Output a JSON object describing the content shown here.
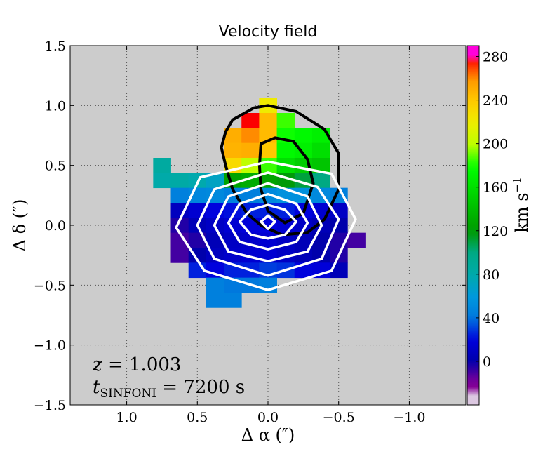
{
  "chart_data": {
    "type": "heatmap",
    "title": "Velocity field",
    "xlabel": "Δ α  (″)",
    "ylabel": "Δ δ  (″)",
    "xlim": [
      1.4,
      -1.4
    ],
    "ylim": [
      -1.5,
      1.5
    ],
    "xticks": [
      1.0,
      0.5,
      0.0,
      -0.5,
      -1.0
    ],
    "xtick_labels": [
      "1.0",
      "0.5",
      "0.0",
      "−0.5",
      "−1.0"
    ],
    "yticks": [
      1.5,
      1.0,
      0.5,
      0.0,
      -0.5,
      -1.0,
      -1.5
    ],
    "ytick_labels": [
      "1.5",
      "1.0",
      "0.5",
      "0.0",
      "−0.5",
      "−1.0",
      "−1.5"
    ],
    "grid": true,
    "background": "#cccccc",
    "pixel_size_arcsec": 0.125,
    "colorbar": {
      "label": "km s",
      "label_exp": "−1",
      "vmin": -40,
      "vmax": 290,
      "ticks": [
        280,
        240,
        200,
        160,
        120,
        80,
        40,
        0
      ],
      "tick_labels": [
        "280",
        "240",
        "200",
        "160",
        "120",
        "80",
        "40",
        "0"
      ],
      "colormap": "nipy_spectral"
    },
    "rows": [
      {
        "dec": 1.0,
        "cells": [
          [
            0.0,
            220
          ]
        ]
      },
      {
        "dec": 0.875,
        "cells": [
          [
            0.125,
            280
          ],
          [
            0.0,
            245
          ],
          [
            -0.125,
            185
          ]
        ]
      },
      {
        "dec": 0.75,
        "cells": [
          [
            0.25,
            250
          ],
          [
            0.125,
            260
          ],
          [
            0.0,
            245
          ],
          [
            -0.125,
            180
          ],
          [
            -0.25,
            175
          ],
          [
            -0.375,
            170
          ]
        ]
      },
      {
        "dec": 0.625,
        "cells": [
          [
            0.25,
            248
          ],
          [
            0.125,
            250
          ],
          [
            0.0,
            240
          ],
          [
            -0.125,
            175
          ],
          [
            -0.25,
            170
          ],
          [
            -0.375,
            160
          ]
        ]
      },
      {
        "dec": 0.5,
        "cells": [
          [
            0.75,
            85
          ],
          [
            0.25,
            230
          ],
          [
            0.125,
            200
          ],
          [
            0.0,
            185
          ],
          [
            -0.125,
            160
          ],
          [
            -0.25,
            150
          ],
          [
            -0.375,
            145
          ]
        ]
      },
      {
        "dec": 0.375,
        "cells": [
          [
            0.75,
            80
          ],
          [
            0.625,
            82
          ],
          [
            0.5,
            78
          ],
          [
            0.375,
            70
          ],
          [
            0.25,
            125
          ],
          [
            0.125,
            130
          ],
          [
            0.0,
            125
          ],
          [
            -0.125,
            118
          ],
          [
            -0.25,
            110
          ],
          [
            -0.375,
            100
          ]
        ]
      },
      {
        "dec": 0.25,
        "cells": [
          [
            0.625,
            45
          ],
          [
            0.5,
            48
          ],
          [
            0.375,
            50
          ],
          [
            0.25,
            45
          ],
          [
            0.125,
            45
          ],
          [
            0.0,
            50
          ],
          [
            -0.125,
            55
          ],
          [
            -0.25,
            55
          ],
          [
            -0.375,
            50
          ],
          [
            -0.5,
            45
          ]
        ]
      },
      {
        "dec": 0.125,
        "cells": [
          [
            0.625,
            8
          ],
          [
            0.5,
            15
          ],
          [
            0.375,
            20
          ],
          [
            0.25,
            22
          ],
          [
            0.125,
            25
          ],
          [
            0.0,
            25
          ],
          [
            -0.125,
            25
          ],
          [
            -0.25,
            20
          ],
          [
            -0.375,
            15
          ],
          [
            -0.5,
            10
          ]
        ]
      },
      {
        "dec": 0.0,
        "cells": [
          [
            0.625,
            -5
          ],
          [
            0.5,
            5
          ],
          [
            0.375,
            10
          ],
          [
            0.25,
            15
          ],
          [
            0.125,
            18
          ],
          [
            0.0,
            20
          ],
          [
            -0.125,
            15
          ],
          [
            -0.25,
            10
          ],
          [
            -0.375,
            5
          ],
          [
            -0.5,
            0
          ]
        ]
      },
      {
        "dec": -0.125,
        "cells": [
          [
            0.625,
            -10
          ],
          [
            0.5,
            -5
          ],
          [
            0.375,
            5
          ],
          [
            0.25,
            10
          ],
          [
            0.125,
            12
          ],
          [
            0.0,
            15
          ],
          [
            -0.125,
            10
          ],
          [
            -0.25,
            5
          ],
          [
            -0.375,
            0
          ],
          [
            -0.5,
            -5
          ],
          [
            -0.625,
            -10
          ]
        ]
      },
      {
        "dec": -0.25,
        "cells": [
          [
            0.625,
            -10
          ],
          [
            0.5,
            0
          ],
          [
            0.375,
            8
          ],
          [
            0.25,
            12
          ],
          [
            0.125,
            15
          ],
          [
            0.0,
            15
          ],
          [
            -0.125,
            10
          ],
          [
            -0.25,
            5
          ],
          [
            -0.375,
            0
          ],
          [
            -0.5,
            -5
          ]
        ]
      },
      {
        "dec": -0.375,
        "cells": [
          [
            0.5,
            25
          ],
          [
            0.375,
            20
          ],
          [
            0.25,
            25
          ],
          [
            0.125,
            25
          ],
          [
            0.0,
            30
          ],
          [
            -0.125,
            28
          ],
          [
            -0.25,
            20
          ],
          [
            -0.375,
            18
          ],
          [
            -0.5,
            5
          ]
        ]
      },
      {
        "dec": -0.5,
        "cells": [
          [
            0.375,
            45
          ],
          [
            0.25,
            40
          ],
          [
            0.125,
            40
          ],
          [
            0.0,
            45
          ]
        ]
      },
      {
        "dec": -0.625,
        "cells": [
          [
            0.375,
            45
          ],
          [
            0.25,
            45
          ]
        ]
      }
    ],
    "contours_white": [
      [
        [
          0.05,
          0.03
        ],
        [
          0.0,
          0.08
        ],
        [
          -0.05,
          0.03
        ],
        [
          0.0,
          -0.03
        ]
      ],
      [
        [
          0.2,
          0.03
        ],
        [
          0.12,
          0.13
        ],
        [
          0.0,
          0.17
        ],
        [
          -0.12,
          0.13
        ],
        [
          -0.2,
          0.03
        ],
        [
          -0.12,
          -0.08
        ],
        [
          0.0,
          -0.11
        ],
        [
          0.12,
          -0.08
        ]
      ],
      [
        [
          0.28,
          0.02
        ],
        [
          0.2,
          0.18
        ],
        [
          0.0,
          0.26
        ],
        [
          -0.2,
          0.18
        ],
        [
          -0.28,
          0.02
        ],
        [
          -0.2,
          -0.14
        ],
        [
          0.0,
          -0.2
        ],
        [
          0.2,
          -0.14
        ]
      ],
      [
        [
          0.38,
          0.0
        ],
        [
          0.28,
          0.24
        ],
        [
          0.0,
          0.35
        ],
        [
          -0.28,
          0.24
        ],
        [
          -0.38,
          0.0
        ],
        [
          -0.28,
          -0.22
        ],
        [
          0.0,
          -0.3
        ],
        [
          0.28,
          -0.22
        ]
      ],
      [
        [
          0.5,
          0.0
        ],
        [
          0.38,
          0.3
        ],
        [
          0.0,
          0.44
        ],
        [
          -0.35,
          0.32
        ],
        [
          -0.5,
          0.05
        ],
        [
          -0.38,
          -0.28
        ],
        [
          0.0,
          -0.42
        ],
        [
          0.38,
          -0.28
        ]
      ],
      [
        [
          0.65,
          -0.02
        ],
        [
          0.48,
          0.4
        ],
        [
          0.0,
          0.53
        ],
        [
          -0.45,
          0.43
        ],
        [
          -0.62,
          0.05
        ],
        [
          -0.45,
          -0.38
        ],
        [
          0.0,
          -0.54
        ],
        [
          0.45,
          -0.38
        ]
      ]
    ],
    "contours_black": [
      [
        [
          0.3,
          0.78
        ],
        [
          0.25,
          0.88
        ],
        [
          0.1,
          0.98
        ],
        [
          0.0,
          1.0
        ],
        [
          -0.2,
          0.95
        ],
        [
          -0.4,
          0.8
        ],
        [
          -0.5,
          0.6
        ],
        [
          -0.5,
          0.3
        ],
        [
          -0.4,
          0.05
        ],
        [
          -0.28,
          -0.06
        ],
        [
          -0.1,
          -0.08
        ],
        [
          0.05,
          0.0
        ],
        [
          0.15,
          0.1
        ],
        [
          0.25,
          0.3
        ],
        [
          0.3,
          0.5
        ],
        [
          0.33,
          0.65
        ],
        [
          0.3,
          0.78
        ]
      ],
      [
        [
          0.05,
          0.68
        ],
        [
          -0.05,
          0.73
        ],
        [
          -0.18,
          0.7
        ],
        [
          -0.28,
          0.55
        ],
        [
          -0.32,
          0.35
        ],
        [
          -0.25,
          0.1
        ],
        [
          -0.12,
          0.02
        ],
        [
          0.0,
          0.12
        ],
        [
          0.05,
          0.3
        ],
        [
          0.06,
          0.5
        ],
        [
          0.05,
          0.68
        ]
      ]
    ],
    "annotations": {
      "redshift_var": "z",
      "redshift_eq": " = 1.003",
      "time_var": "t",
      "time_sub": "SINFONI",
      "time_eq": " = 7200 s"
    }
  }
}
